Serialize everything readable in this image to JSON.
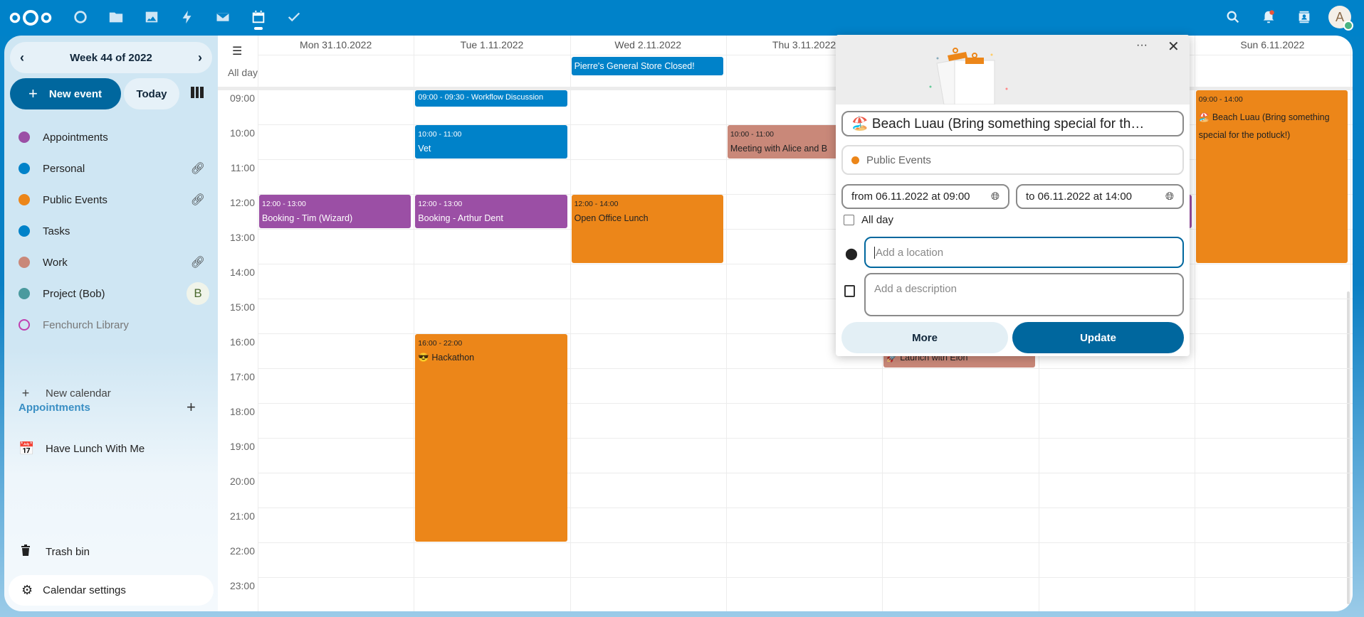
{
  "topbar": {
    "apps": [
      "dashboard-icon",
      "files-icon",
      "photos-icon",
      "activity-icon",
      "mail-icon",
      "calendar-icon",
      "tasks-icon"
    ],
    "right": [
      "search-icon",
      "notifications-icon",
      "contacts-icon"
    ],
    "avatar_letter": "A",
    "colors": {
      "bar": "#0082c9"
    }
  },
  "sidebar": {
    "week_label": "Week 44 of 2022",
    "new_event": "New event",
    "today": "Today",
    "calendars": [
      {
        "name": "Appointments",
        "color": "#9b4fa5",
        "action": ""
      },
      {
        "name": "Personal",
        "color": "#0082c9",
        "action": "link-icon"
      },
      {
        "name": "Public Events",
        "color": "#ec8619",
        "action": "link-icon"
      },
      {
        "name": "Tasks",
        "color": "#0082c9",
        "action": ""
      },
      {
        "name": "Work",
        "color": "#c98879",
        "action": "link-icon"
      },
      {
        "name": "Project (Bob)",
        "color": "#4a9a9e",
        "action": "avatar",
        "avatar": "B"
      },
      {
        "name": "Fenchurch Library",
        "color": "#c040b0",
        "action": "",
        "disabled": true
      }
    ],
    "new_calendar": "New calendar",
    "appointments_heading": "Appointments",
    "appointments": [
      "Have Lunch With Me"
    ],
    "trash": "Trash bin",
    "settings": "Calendar settings"
  },
  "calendar": {
    "allday_label": "All day",
    "days": [
      "Mon 31.10.2022",
      "Tue 1.11.2022",
      "Wed 2.11.2022",
      "Thu 3.11.2022",
      "Fri 4.11.2022",
      "Sat 5.11.2022",
      "Sun 6.11.2022"
    ],
    "hours": [
      "09:00",
      "10:00",
      "11:00",
      "12:00",
      "13:00",
      "14:00",
      "15:00",
      "16:00",
      "17:00",
      "18:00",
      "19:00",
      "20:00",
      "21:00",
      "22:00",
      "23:00"
    ],
    "allday_events": [
      {
        "day": 2,
        "title": "Pierre's General Store Closed!",
        "color": "#0082c9"
      }
    ],
    "events": [
      {
        "day": 1,
        "start": 9,
        "end": 9.5,
        "inline": true,
        "time": "09:00 - 09:30",
        "title": "Workflow Discussion",
        "color": "#0082c9",
        "fg": "#fff"
      },
      {
        "day": 1,
        "start": 10,
        "end": 11,
        "time": "10:00 - 11:00",
        "title": "Vet",
        "color": "#0082c9",
        "fg": "#fff"
      },
      {
        "day": 0,
        "start": 12,
        "end": 13,
        "time": "12:00 - 13:00",
        "title": "Booking - Tim (Wizard)",
        "color": "#9b4fa5",
        "fg": "#fff"
      },
      {
        "day": 1,
        "start": 12,
        "end": 13,
        "time": "12:00 - 13:00",
        "title": "Booking - Arthur Dent",
        "color": "#9b4fa5",
        "fg": "#fff"
      },
      {
        "day": 2,
        "start": 12,
        "end": 14,
        "time": "12:00 - 14:00",
        "title": "Open Office Lunch",
        "color": "#ec8619",
        "fg": "#222"
      },
      {
        "day": 3,
        "start": 10,
        "end": 11,
        "time": "10:00 - 11:00",
        "title": "Meeting with Alice and B",
        "color": "#c98879",
        "fg": "#222"
      },
      {
        "day": 1,
        "start": 16,
        "end": 22,
        "time": "16:00 - 22:00",
        "title": "😎 Hackathon",
        "color": "#ec8619",
        "fg": "#222"
      },
      {
        "day": 4,
        "start": 16,
        "end": 17,
        "time": "",
        "title": "🚀 Launch with Elon",
        "color": "#c98879",
        "fg": "#222"
      },
      {
        "day": 5,
        "start": 12,
        "end": 13,
        "time": "",
        "title": "",
        "color": "#9b4fa5",
        "fg": "#fff"
      },
      {
        "day": 6,
        "start": 9,
        "end": 14,
        "time": "09:00 - 14:00",
        "title": "🏖️ Beach Luau (Bring something special for the potluck!)",
        "color": "#ec8619",
        "fg": "#222"
      }
    ]
  },
  "popover": {
    "title": "🏖️ Beach Luau (Bring something special for th…",
    "calendar": "Public Events",
    "calendar_color": "#ec8619",
    "from": "from 06.11.2022 at 09:00",
    "to": "to 06.11.2022 at 14:00",
    "allday": "All day",
    "allday_checked": false,
    "location_placeholder": "Add a location",
    "description_placeholder": "Add a description",
    "more": "More",
    "update": "Update"
  }
}
